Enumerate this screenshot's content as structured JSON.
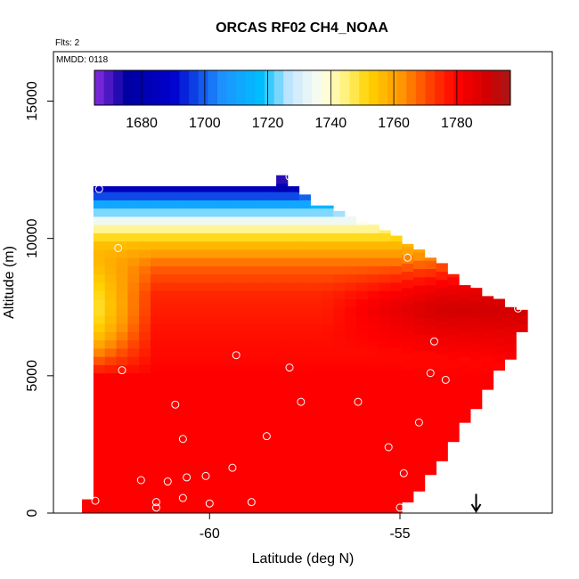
{
  "chart_data": {
    "type": "heatmap",
    "title": "ORCAS RF02 CH4_NOAA",
    "corner_labels": {
      "flights": "Flts: 2",
      "date": "MMDD: 0118"
    },
    "xlabel": "Latitude (deg N)",
    "ylabel": "Altitude (m)",
    "xlim": [
      -64.1,
      -51.0
    ],
    "ylim": [
      0,
      16800
    ],
    "x_ticks": [
      -60,
      -55
    ],
    "x_tick_labels": [
      "-60",
      "-55"
    ],
    "y_ticks": [
      0,
      5000,
      10000,
      15000
    ],
    "y_tick_labels": [
      "0",
      "5000",
      "10000",
      "15000"
    ],
    "grid": false,
    "colorbar": {
      "placement": "top, inside plot",
      "range": [
        1665,
        1797
      ],
      "ticks": [
        1680,
        1700,
        1720,
        1740,
        1760,
        1780
      ],
      "tick_labels": [
        "1680",
        "1700",
        "1720",
        "1740",
        "1760",
        "1780"
      ],
      "colormap": [
        [
          1665,
          "#8a2be2"
        ],
        [
          1675,
          "#0000a0"
        ],
        [
          1690,
          "#0000cd"
        ],
        [
          1705,
          "#1e90ff"
        ],
        [
          1718,
          "#00bfff"
        ],
        [
          1727,
          "#c6e6ff"
        ],
        [
          1737,
          "#ffffee"
        ],
        [
          1745,
          "#fff176"
        ],
        [
          1752,
          "#ffd200"
        ],
        [
          1762,
          "#ff9a00"
        ],
        [
          1772,
          "#ff3c00"
        ],
        [
          1780,
          "#ff0000"
        ],
        [
          1790,
          "#d00000"
        ],
        [
          1797,
          "#a81818"
        ]
      ]
    },
    "column_extents": [
      [
        -63.2,
        0,
        500
      ],
      [
        -62.9,
        0,
        11900
      ],
      [
        -62.6,
        0,
        11900
      ],
      [
        -62.3,
        0,
        11900
      ],
      [
        -62.0,
        0,
        11900
      ],
      [
        -61.7,
        0,
        11900
      ],
      [
        -61.4,
        0,
        11900
      ],
      [
        -61.1,
        0,
        11900
      ],
      [
        -60.8,
        0,
        11900
      ],
      [
        -60.5,
        0,
        11900
      ],
      [
        -60.2,
        0,
        11900
      ],
      [
        -59.9,
        0,
        11900
      ],
      [
        -59.6,
        0,
        11900
      ],
      [
        -59.3,
        0,
        11900
      ],
      [
        -59.0,
        0,
        11900
      ],
      [
        -58.7,
        0,
        11900
      ],
      [
        -58.4,
        0,
        11900
      ],
      [
        -58.1,
        0,
        12300
      ],
      [
        -57.8,
        0,
        11900
      ],
      [
        -57.5,
        0,
        11600
      ],
      [
        -57.2,
        0,
        11200
      ],
      [
        -56.9,
        0,
        11200
      ],
      [
        -56.6,
        0,
        11000
      ],
      [
        -56.3,
        0,
        10800
      ],
      [
        -56.0,
        0,
        10600
      ],
      [
        -55.7,
        0,
        10500
      ],
      [
        -55.4,
        0,
        10300
      ],
      [
        -55.1,
        0,
        10100
      ],
      [
        -54.8,
        0,
        9800
      ],
      [
        -54.5,
        0,
        9600
      ],
      [
        -54.2,
        0,
        9300
      ],
      [
        -53.9,
        0,
        9100
      ],
      [
        -53.6,
        0,
        8700
      ],
      [
        -53.3,
        0,
        8300
      ],
      [
        -53.0,
        0,
        8200
      ],
      [
        -52.7,
        0,
        7900
      ],
      [
        -52.4,
        0,
        7800
      ],
      [
        -52.1,
        0,
        7500
      ],
      [
        -51.8,
        0,
        7400
      ],
      [
        -51.5,
        0,
        7100
      ]
    ],
    "bottom_edge": [
      [
        -63.2,
        0
      ],
      [
        -62.9,
        0
      ],
      [
        -62.6,
        0
      ],
      [
        -62.3,
        0
      ],
      [
        -62.0,
        0
      ],
      [
        -61.7,
        0
      ],
      [
        -61.4,
        0
      ],
      [
        -61.1,
        0
      ],
      [
        -60.8,
        0
      ],
      [
        -60.5,
        0
      ],
      [
        -60.2,
        0
      ],
      [
        -59.9,
        0
      ],
      [
        -59.6,
        0
      ],
      [
        -59.3,
        0
      ],
      [
        -59.0,
        0
      ],
      [
        -58.7,
        0
      ],
      [
        -58.4,
        0
      ],
      [
        -58.1,
        0
      ],
      [
        -57.8,
        0
      ],
      [
        -57.5,
        0
      ],
      [
        -57.2,
        0
      ],
      [
        -56.9,
        0
      ],
      [
        -56.6,
        0
      ],
      [
        -56.3,
        0
      ],
      [
        -56.0,
        0
      ],
      [
        -55.7,
        0
      ],
      [
        -55.4,
        0
      ],
      [
        -55.1,
        0
      ],
      [
        -54.8,
        400
      ],
      [
        -54.5,
        800
      ],
      [
        -54.2,
        1400
      ],
      [
        -53.9,
        1900
      ],
      [
        -53.6,
        2600
      ],
      [
        -53.3,
        3300
      ],
      [
        -53.0,
        3800
      ],
      [
        -52.7,
        4500
      ],
      [
        -52.4,
        5200
      ],
      [
        -52.1,
        5600
      ],
      [
        -51.8,
        6600
      ],
      [
        -51.5,
        7100
      ]
    ],
    "field_model": {
      "background": 1780,
      "layers": [
        {
          "alt": 0,
          "value": 1780
        },
        {
          "alt": 5000,
          "value": 1780
        },
        {
          "alt": 6500,
          "value": 1778
        },
        {
          "alt": 8000,
          "value": 1775
        },
        {
          "alt": 9000,
          "value": 1768
        },
        {
          "alt": 9700,
          "value": 1758
        },
        {
          "alt": 10200,
          "value": 1747
        },
        {
          "alt": 10600,
          "value": 1736
        },
        {
          "alt": 11000,
          "value": 1722
        },
        {
          "alt": 11400,
          "value": 1705
        },
        {
          "alt": 11700,
          "value": 1690
        },
        {
          "alt": 12000,
          "value": 1672
        }
      ],
      "west_edge_low": {
        "lat": -62.6,
        "value": 1745,
        "alt_from": 5000,
        "alt_to": 10000
      },
      "dark_core": {
        "lat_from": -57.0,
        "lat_to": -51.0,
        "alt": 7400,
        "value": 1790
      }
    },
    "samples": [
      [
        -63.0,
        450
      ],
      [
        -62.9,
        11800
      ],
      [
        -62.4,
        9650
      ],
      [
        -62.3,
        5200
      ],
      [
        -61.8,
        1200
      ],
      [
        -61.4,
        400
      ],
      [
        -61.4,
        200
      ],
      [
        -61.1,
        1150
      ],
      [
        -60.9,
        3950
      ],
      [
        -60.7,
        2700
      ],
      [
        -60.6,
        1300
      ],
      [
        -60.7,
        550
      ],
      [
        -60.1,
        1350
      ],
      [
        -60.0,
        350
      ],
      [
        -59.4,
        1650
      ],
      [
        -59.3,
        5750
      ],
      [
        -58.9,
        400
      ],
      [
        -58.5,
        2800
      ],
      [
        -57.9,
        5300
      ],
      [
        -57.6,
        4050
      ],
      [
        -57.9,
        12250
      ],
      [
        -56.1,
        4050
      ],
      [
        -55.3,
        2400
      ],
      [
        -55.0,
        200
      ],
      [
        -54.9,
        1450
      ],
      [
        -54.5,
        3300
      ],
      [
        -54.2,
        5100
      ],
      [
        -54.1,
        6250
      ],
      [
        -53.8,
        4850
      ],
      [
        -53.5,
        8950
      ],
      [
        -51.9,
        7450
      ],
      [
        -54.8,
        9300
      ]
    ],
    "arrow_marker": {
      "lat": -53.0,
      "alt_from": 700,
      "alt_to": 0
    }
  }
}
